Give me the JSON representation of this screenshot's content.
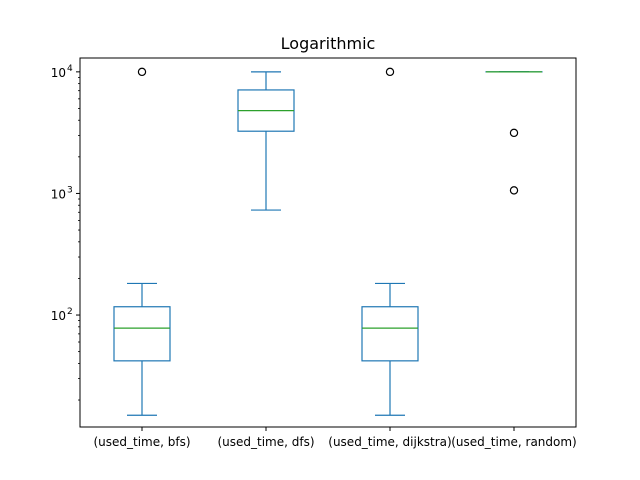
{
  "chart_data": {
    "type": "box",
    "title": "Logarithmic",
    "yscale": "log",
    "ylim": [
      12,
      13000
    ],
    "yticks": [
      {
        "value": 100,
        "base": "10",
        "exp": "2"
      },
      {
        "value": 1000,
        "base": "10",
        "exp": "3"
      },
      {
        "value": 10000,
        "base": "10",
        "exp": "4"
      }
    ],
    "categories": [
      "(used_time, bfs)",
      "(used_time, dfs)",
      "(used_time, dijkstra)",
      "(used_time, random)"
    ],
    "boxes": [
      {
        "whisker_low": 15,
        "q1": 42,
        "median": 78,
        "q3": 117,
        "whisker_high": 182,
        "outliers": [
          10000
        ]
      },
      {
        "whisker_low": 730,
        "q1": 3250,
        "median": 4800,
        "q3": 7100,
        "whisker_high": 10000,
        "outliers": []
      },
      {
        "whisker_low": 15,
        "q1": 42,
        "median": 78,
        "q3": 117,
        "whisker_high": 182,
        "outliers": [
          10000
        ]
      },
      {
        "whisker_low": 10000,
        "q1": 10000,
        "median": 10000,
        "q3": 10000,
        "whisker_high": 10000,
        "outliers": [
          3150,
          1060
        ]
      }
    ],
    "colors": {
      "box": "#1f77b4",
      "median": "#2ca02c",
      "outlier": "#000000"
    }
  }
}
